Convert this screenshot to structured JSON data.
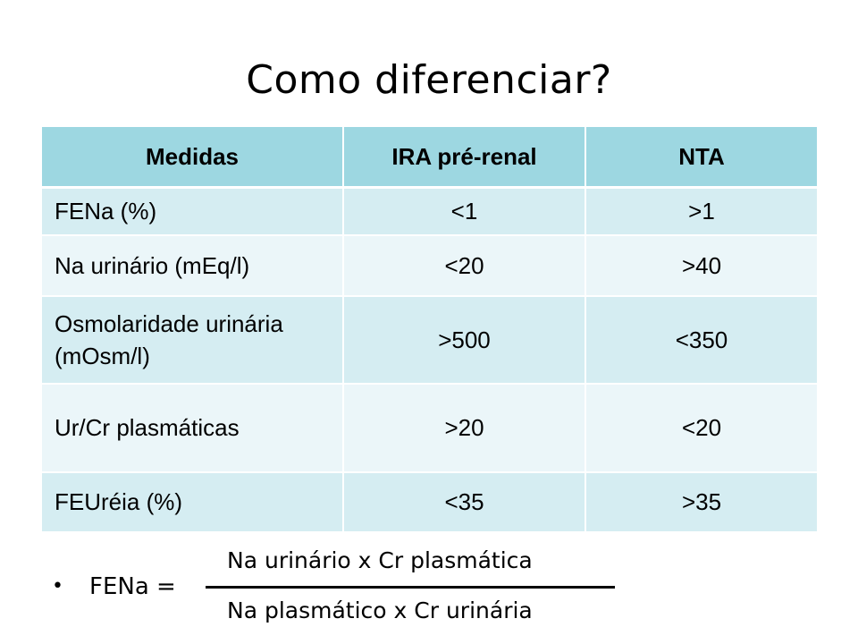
{
  "title": "Como diferenciar?",
  "table": {
    "headers": [
      "Medidas",
      "IRA pré-renal",
      "NTA"
    ],
    "rows": [
      {
        "measure": "FENa (%)",
        "pre_renal": "<1",
        "nta": ">1"
      },
      {
        "measure": "Na urinário (mEq/l)",
        "pre_renal": "<20",
        "nta": ">40"
      },
      {
        "measure": "Osmolaridade urinária (mOsm/l)",
        "pre_renal": ">500",
        "nta": "<350"
      },
      {
        "measure": "Ur/Cr plasmáticas",
        "pre_renal": ">20",
        "nta": "<20"
      },
      {
        "measure": "FEUréia (%)",
        "pre_renal": "<35",
        "nta": ">35"
      }
    ]
  },
  "formula": {
    "bullet": "•",
    "label": "FENa =",
    "numerator": "Na urinário x Cr plasmática",
    "denominator": "Na plasmático x Cr urinária"
  },
  "colors": {
    "header_bg": "#9dd7e1",
    "row_dark": "#d5edf2",
    "row_light": "#ebf6f9"
  }
}
